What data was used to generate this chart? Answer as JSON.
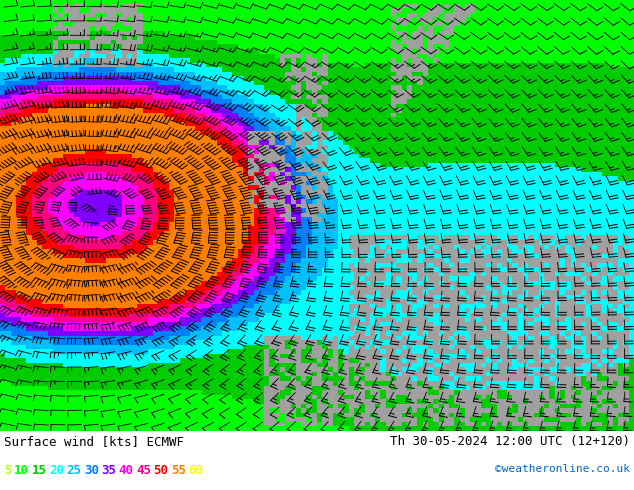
{
  "title_left": "Surface wind [kts] ECMWF",
  "title_right": "Th 30-05-2024 12:00 UTC (12+120)",
  "credit": "©weatheronline.co.uk",
  "legend_values": [
    5,
    10,
    15,
    20,
    25,
    30,
    35,
    40,
    45,
    50,
    55,
    60
  ],
  "legend_colors": [
    "#adff2f",
    "#00ff00",
    "#00cc00",
    "#00ffff",
    "#00bfff",
    "#0080ff",
    "#8000ff",
    "#ff00ff",
    "#ff0080",
    "#ff0000",
    "#ff8000",
    "#ffff00"
  ],
  "speed_levels": [
    0,
    5,
    10,
    15,
    20,
    25,
    30,
    35,
    40,
    45,
    50,
    55,
    60
  ],
  "speed_colors": [
    "#ffff00",
    "#adff2f",
    "#00ff00",
    "#00cc00",
    "#00ffff",
    "#00bfff",
    "#0080ff",
    "#8000ff",
    "#ff00ff",
    "#ff0080",
    "#ff0000",
    "#ff8000"
  ],
  "land_color": "#a0a0a0",
  "fig_width": 6.34,
  "fig_height": 4.9,
  "dpi": 100
}
